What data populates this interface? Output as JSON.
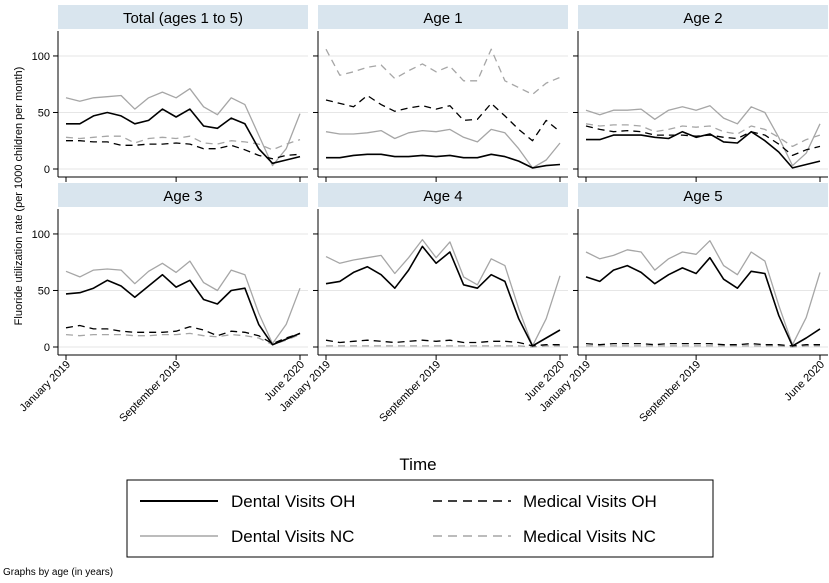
{
  "chart_data": {
    "type": "line",
    "layout": "small-multiples-2x3",
    "xlabel": "Time",
    "ylabel": "Fluoride utilization rate (per 1000 children per month)",
    "note": "Graphs by age (in years)",
    "ylim": [
      0,
      115
    ],
    "yticks": [
      0,
      50,
      100
    ],
    "xlim": [
      0,
      17
    ],
    "xticks": [
      {
        "x": 0,
        "label": "January 2019"
      },
      {
        "x": 8,
        "label": "September 2019"
      },
      {
        "x": 17,
        "label": "June 2020"
      }
    ],
    "legend": [
      {
        "key": "dental_oh",
        "label": "Dental Visits OH",
        "color": "#000000",
        "dash": "solid"
      },
      {
        "key": "medical_oh",
        "label": "Medical Visits OH",
        "color": "#000000",
        "dash": "dashed"
      },
      {
        "key": "dental_nc",
        "label": "Dental Visits NC",
        "color": "#a6a6a6",
        "dash": "solid"
      },
      {
        "key": "medical_nc",
        "label": "Medical Visits NC",
        "color": "#a6a6a6",
        "dash": "dashed"
      }
    ],
    "panels": [
      {
        "title": "Total (ages 1 to 5)",
        "series": {
          "dental_oh": [
            40,
            40,
            47,
            50,
            47,
            40,
            43,
            53,
            46,
            53,
            38,
            36,
            45,
            40,
            18,
            5,
            8,
            11
          ],
          "medical_oh": [
            25,
            25,
            24,
            24,
            21,
            21,
            22,
            22,
            23,
            22,
            18,
            18,
            21,
            17,
            12,
            9,
            12,
            13
          ],
          "dental_nc": [
            63,
            60,
            63,
            64,
            65,
            53,
            63,
            68,
            63,
            71,
            55,
            48,
            63,
            57,
            30,
            3,
            18,
            49
          ],
          "medical_nc": [
            28,
            27,
            28,
            29,
            29,
            23,
            27,
            28,
            27,
            29,
            23,
            22,
            25,
            24,
            22,
            17,
            22,
            26
          ]
        }
      },
      {
        "title": "Age 1",
        "series": {
          "dental_oh": [
            10,
            10,
            12,
            13,
            13,
            11,
            11,
            12,
            11,
            12,
            10,
            10,
            13,
            11,
            7,
            1,
            3,
            4
          ],
          "medical_oh": [
            61,
            58,
            55,
            65,
            57,
            51,
            54,
            56,
            53,
            56,
            43,
            44,
            58,
            47,
            35,
            25,
            43,
            33
          ],
          "dental_nc": [
            33,
            31,
            31,
            32,
            34,
            27,
            32,
            34,
            33,
            35,
            28,
            24,
            35,
            32,
            18,
            1,
            8,
            23
          ],
          "medical_nc": [
            106,
            83,
            86,
            90,
            92,
            80,
            87,
            93,
            86,
            91,
            78,
            78,
            106,
            78,
            72,
            66,
            76,
            81
          ]
        }
      },
      {
        "title": "Age 2",
        "series": {
          "dental_oh": [
            26,
            26,
            30,
            30,
            30,
            28,
            27,
            33,
            28,
            31,
            24,
            23,
            33,
            25,
            15,
            1,
            4,
            7
          ],
          "medical_oh": [
            38,
            35,
            33,
            34,
            33,
            30,
            30,
            30,
            29,
            30,
            28,
            27,
            33,
            30,
            22,
            12,
            17,
            20
          ],
          "dental_nc": [
            52,
            48,
            52,
            52,
            53,
            44,
            52,
            55,
            52,
            56,
            45,
            40,
            55,
            50,
            28,
            3,
            14,
            40
          ],
          "medical_nc": [
            40,
            38,
            39,
            39,
            38,
            33,
            35,
            38,
            37,
            38,
            33,
            31,
            38,
            35,
            28,
            20,
            26,
            30
          ]
        }
      },
      {
        "title": "Age 3",
        "series": {
          "dental_oh": [
            47,
            48,
            52,
            59,
            54,
            44,
            54,
            64,
            53,
            59,
            42,
            38,
            50,
            52,
            20,
            2,
            7,
            12
          ],
          "medical_oh": [
            17,
            19,
            16,
            16,
            14,
            13,
            13,
            13,
            14,
            18,
            15,
            10,
            14,
            13,
            10,
            3,
            8,
            12
          ],
          "dental_nc": [
            67,
            62,
            68,
            69,
            68,
            56,
            67,
            74,
            66,
            76,
            57,
            50,
            68,
            64,
            30,
            3,
            20,
            52
          ],
          "medical_nc": [
            11,
            10,
            11,
            11,
            11,
            10,
            10,
            11,
            11,
            12,
            10,
            9,
            11,
            10,
            8,
            2,
            6,
            11
          ]
        }
      },
      {
        "title": "Age 4",
        "series": {
          "dental_oh": [
            56,
            58,
            66,
            71,
            64,
            52,
            68,
            89,
            74,
            84,
            55,
            52,
            64,
            58,
            25,
            1,
            8,
            15
          ],
          "medical_oh": [
            6,
            4,
            5,
            6,
            5,
            4,
            5,
            6,
            5,
            6,
            4,
            4,
            5,
            5,
            4,
            1,
            2,
            2
          ],
          "dental_nc": [
            80,
            74,
            77,
            79,
            81,
            65,
            79,
            95,
            79,
            93,
            62,
            55,
            78,
            72,
            34,
            1,
            25,
            63
          ],
          "medical_nc": [
            1,
            1,
            1,
            1,
            1,
            1,
            1,
            1,
            1,
            1,
            1,
            1,
            1,
            1,
            1,
            0,
            1,
            1
          ]
        }
      },
      {
        "title": "Age 5",
        "series": {
          "dental_oh": [
            62,
            58,
            68,
            72,
            66,
            56,
            64,
            70,
            65,
            79,
            60,
            52,
            67,
            65,
            28,
            1,
            8,
            16
          ],
          "medical_oh": [
            3,
            2,
            3,
            3,
            3,
            2,
            3,
            3,
            3,
            3,
            2,
            2,
            3,
            2,
            2,
            1,
            2,
            2
          ],
          "dental_nc": [
            84,
            78,
            81,
            86,
            84,
            68,
            78,
            84,
            82,
            94,
            72,
            64,
            84,
            76,
            37,
            2,
            26,
            66
          ],
          "medical_nc": [
            1,
            1,
            1,
            1,
            1,
            1,
            1,
            1,
            1,
            1,
            1,
            1,
            1,
            1,
            1,
            0,
            1,
            1
          ]
        }
      }
    ]
  }
}
